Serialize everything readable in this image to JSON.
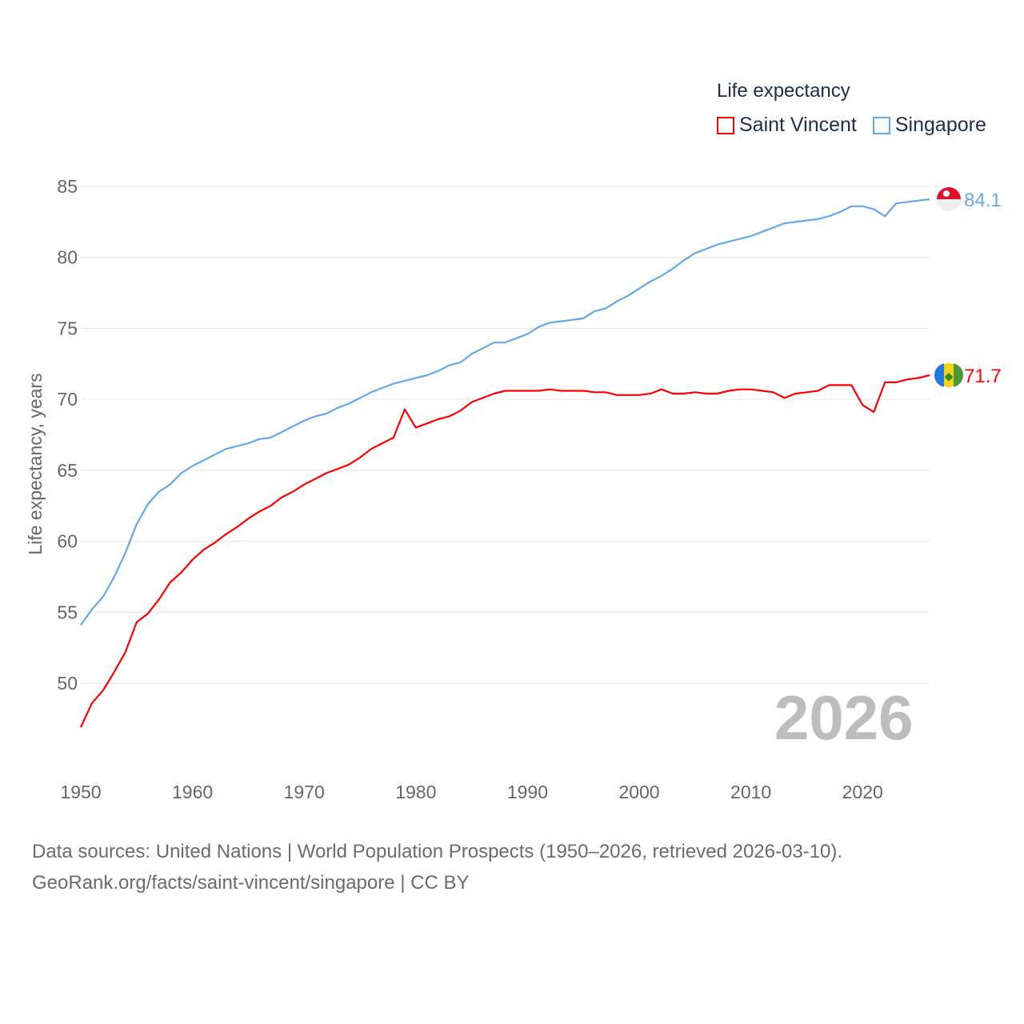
{
  "chart_data": {
    "type": "line",
    "title": "",
    "legend_title": "Life expectancy",
    "legend_placement": "top-right",
    "xlabel": "",
    "ylabel": "Life expectancy, years",
    "xlim": [
      1950,
      2026
    ],
    "ylim": [
      46,
      85
    ],
    "yticks": [
      50,
      55,
      60,
      65,
      70,
      75,
      80,
      85
    ],
    "xticks": [
      1950,
      1960,
      1970,
      1980,
      1990,
      2000,
      2010,
      2020
    ],
    "grid": true,
    "year_watermark": "2026",
    "x_start": 1950,
    "series": [
      {
        "name": "Saint Vincent",
        "color": "#ff0000",
        "end_label": "71.7",
        "values": [
          46.9,
          48.6,
          49.5,
          50.8,
          52.2,
          54.3,
          54.9,
          55.9,
          57.1,
          57.8,
          58.7,
          59.4,
          59.9,
          60.5,
          61.0,
          61.6,
          62.1,
          62.5,
          63.1,
          63.5,
          64.0,
          64.4,
          64.8,
          65.1,
          65.4,
          65.9,
          66.5,
          66.9,
          67.3,
          69.3,
          68.0,
          68.3,
          68.6,
          68.8,
          69.2,
          69.8,
          70.1,
          70.4,
          70.6,
          70.6,
          70.6,
          70.6,
          70.7,
          70.6,
          70.6,
          70.6,
          70.5,
          70.5,
          70.3,
          70.3,
          70.3,
          70.4,
          70.7,
          70.4,
          70.4,
          70.5,
          70.4,
          70.4,
          70.6,
          70.7,
          70.7,
          70.6,
          70.5,
          70.1,
          70.4,
          70.5,
          70.6,
          71.0,
          71.0,
          71.0,
          69.6,
          69.1,
          71.2,
          71.2,
          71.4,
          71.5,
          71.7
        ]
      },
      {
        "name": "Singapore",
        "color": "#62a8ec",
        "end_label": "84.1",
        "values": [
          54.1,
          55.2,
          56.1,
          57.5,
          59.2,
          61.2,
          62.6,
          63.5,
          64.0,
          64.8,
          65.3,
          65.7,
          66.1,
          66.5,
          66.7,
          66.9,
          67.2,
          67.3,
          67.7,
          68.1,
          68.5,
          68.8,
          69.0,
          69.4,
          69.7,
          70.1,
          70.5,
          70.8,
          71.1,
          71.3,
          71.5,
          71.7,
          72.0,
          72.4,
          72.6,
          73.2,
          73.6,
          74.0,
          74.0,
          74.3,
          74.6,
          75.1,
          75.4,
          75.5,
          75.6,
          75.7,
          76.2,
          76.4,
          76.9,
          77.3,
          77.8,
          78.3,
          78.7,
          79.2,
          79.8,
          80.3,
          80.6,
          80.9,
          81.1,
          81.3,
          81.5,
          81.8,
          82.1,
          82.4,
          82.5,
          82.6,
          82.7,
          82.9,
          83.2,
          83.6,
          83.6,
          83.4,
          82.9,
          83.8,
          83.9,
          84.0,
          84.1
        ]
      }
    ]
  },
  "footer": {
    "line1": "Data sources: United Nations | World Population Prospects (1950–2026, retrieved 2026-03-10).",
    "line2": "GeoRank.org/facts/saint-vincent/singapore | CC BY"
  }
}
